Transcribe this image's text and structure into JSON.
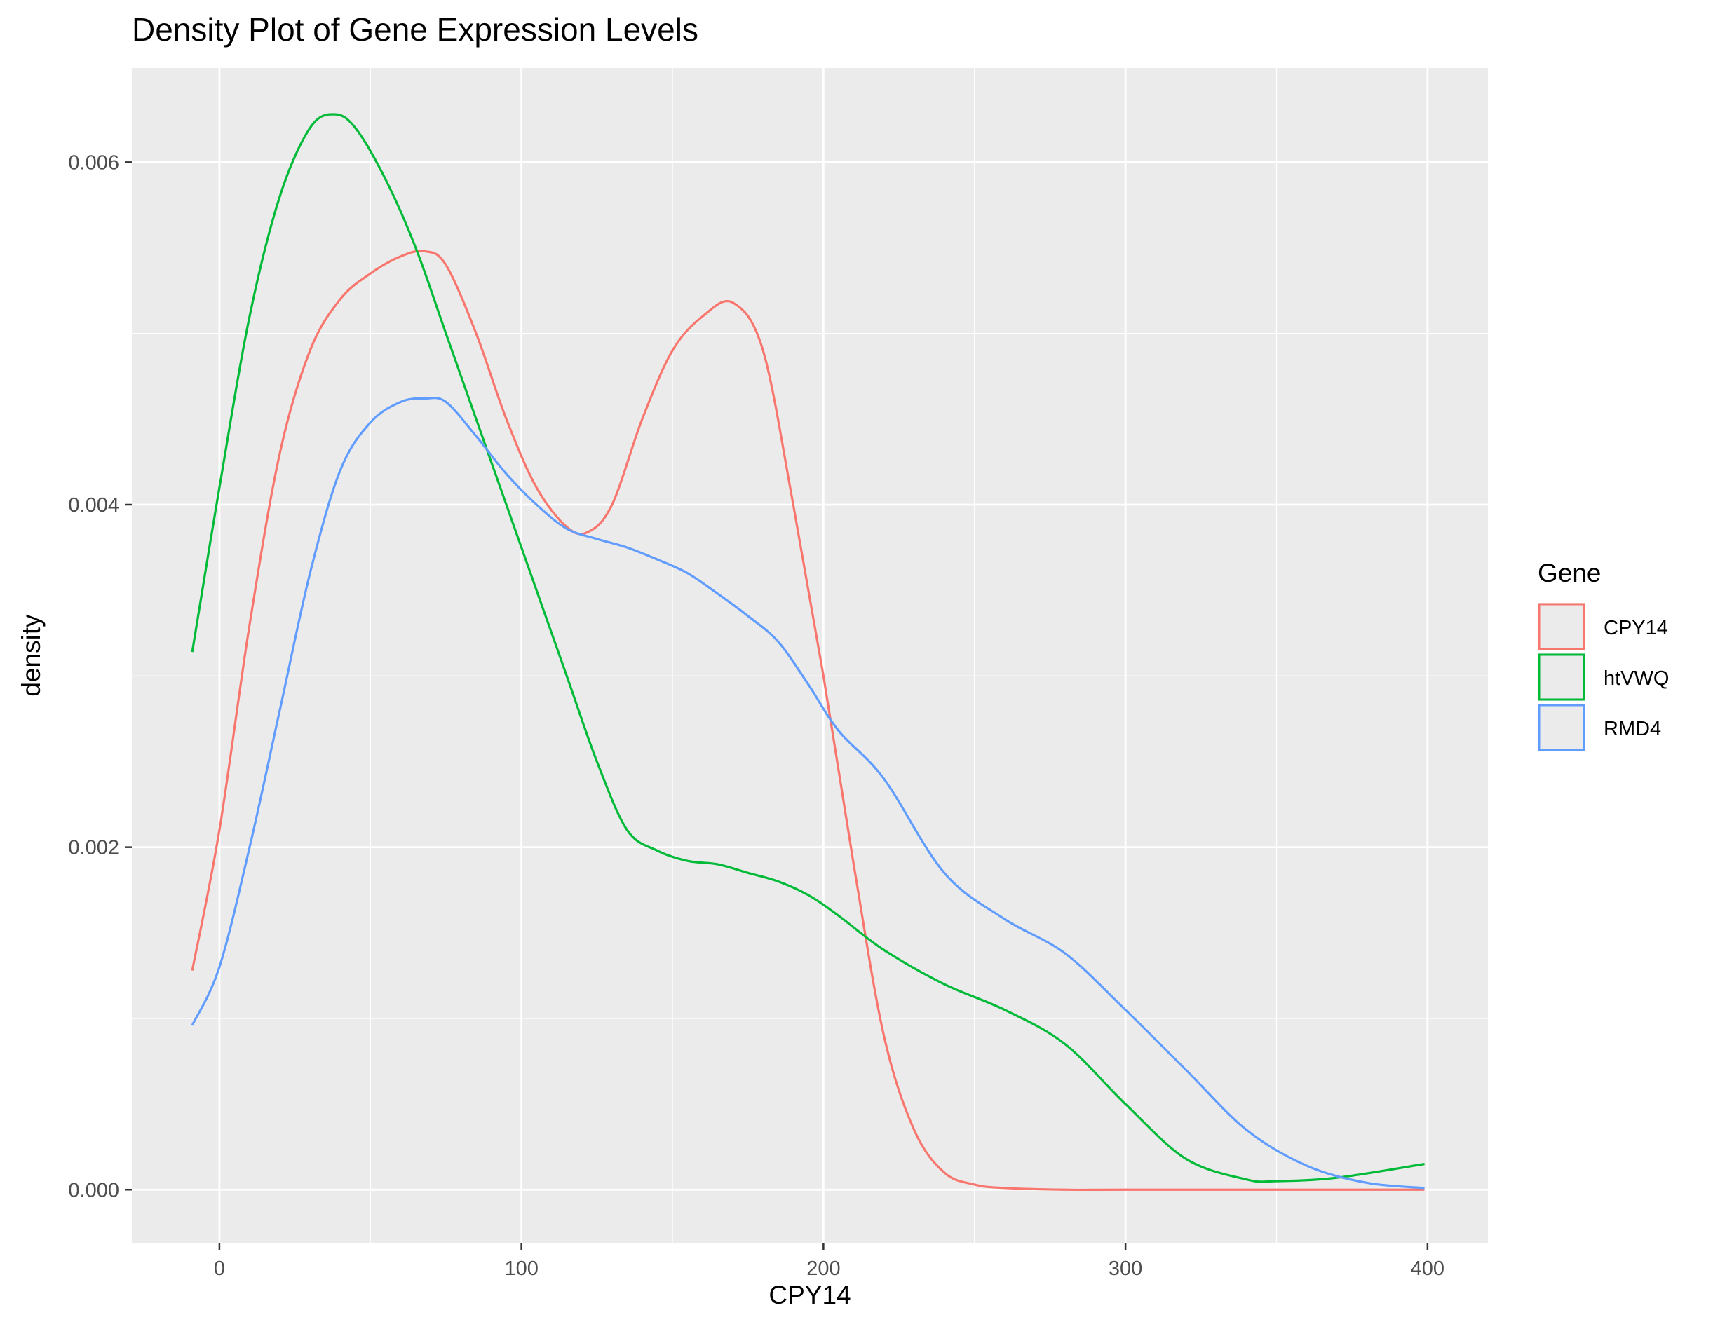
{
  "chart_data": {
    "type": "line",
    "title": "Density Plot of Gene Expression Levels",
    "xlabel": "CPY14",
    "ylabel": "density",
    "xlim": [
      -29,
      420
    ],
    "ylim": [
      -0.00031,
      0.00655
    ],
    "x_ticks": [
      0,
      100,
      200,
      300,
      400
    ],
    "x_tick_labels": [
      "0",
      "100",
      "200",
      "300",
      "400"
    ],
    "y_ticks": [
      0.0,
      0.002,
      0.004,
      0.006
    ],
    "y_tick_labels": [
      "0.000",
      "0.002",
      "0.004",
      "0.006"
    ],
    "grid": true,
    "legend": {
      "title": "Gene",
      "position": "right"
    },
    "series": [
      {
        "name": "CPY14",
        "color": "#F8766D",
        "x": [
          -9,
          0,
          10,
          20,
          30,
          40,
          50,
          60,
          68,
          75,
          85,
          95,
          105,
          115,
          122,
          130,
          140,
          150,
          160,
          170,
          180,
          190,
          200,
          210,
          220,
          230,
          240,
          250,
          260,
          280,
          300,
          350,
          399
        ],
        "y": [
          0.00128,
          0.0021,
          0.0033,
          0.0043,
          0.0049,
          0.0052,
          0.00535,
          0.00545,
          0.00548,
          0.0054,
          0.005,
          0.0045,
          0.0041,
          0.00387,
          0.00384,
          0.004,
          0.0045,
          0.0049,
          0.0051,
          0.00518,
          0.0049,
          0.004,
          0.003,
          0.0019,
          0.0009,
          0.00035,
          0.0001,
          3e-05,
          1e-05,
          0.0,
          0.0,
          0.0,
          0.0
        ]
      },
      {
        "name": "htVWQ",
        "color": "#00BA38",
        "x": [
          -9,
          0,
          10,
          20,
          30,
          38,
          45,
          55,
          65,
          75,
          85,
          95,
          105,
          115,
          125,
          135,
          145,
          155,
          165,
          175,
          185,
          195,
          205,
          220,
          240,
          260,
          280,
          300,
          320,
          340,
          350,
          370,
          399
        ],
        "y": [
          0.00314,
          0.0041,
          0.0051,
          0.0058,
          0.0062,
          0.00628,
          0.0062,
          0.0059,
          0.0055,
          0.005,
          0.0045,
          0.004,
          0.0035,
          0.003,
          0.0025,
          0.0021,
          0.00198,
          0.00192,
          0.0019,
          0.00185,
          0.0018,
          0.00172,
          0.0016,
          0.0014,
          0.0012,
          0.00105,
          0.00085,
          0.0005,
          0.00018,
          6e-05,
          5e-05,
          7e-05,
          0.00015
        ]
      },
      {
        "name": "RMD4",
        "color": "#619CFF",
        "x": [
          -9,
          0,
          10,
          20,
          30,
          40,
          50,
          60,
          68,
          75,
          85,
          95,
          105,
          115,
          125,
          135,
          145,
          155,
          165,
          175,
          185,
          195,
          205,
          220,
          240,
          260,
          280,
          300,
          320,
          340,
          360,
          380,
          399
        ],
        "y": [
          0.00096,
          0.0013,
          0.002,
          0.0028,
          0.0036,
          0.0042,
          0.00448,
          0.0046,
          0.00462,
          0.0046,
          0.0044,
          0.00418,
          0.004,
          0.00386,
          0.0038,
          0.00375,
          0.00368,
          0.0036,
          0.00348,
          0.00335,
          0.0032,
          0.00295,
          0.00268,
          0.0024,
          0.00185,
          0.00158,
          0.00138,
          0.00105,
          0.0007,
          0.00035,
          0.00014,
          4e-05,
          1e-05
        ]
      }
    ]
  }
}
